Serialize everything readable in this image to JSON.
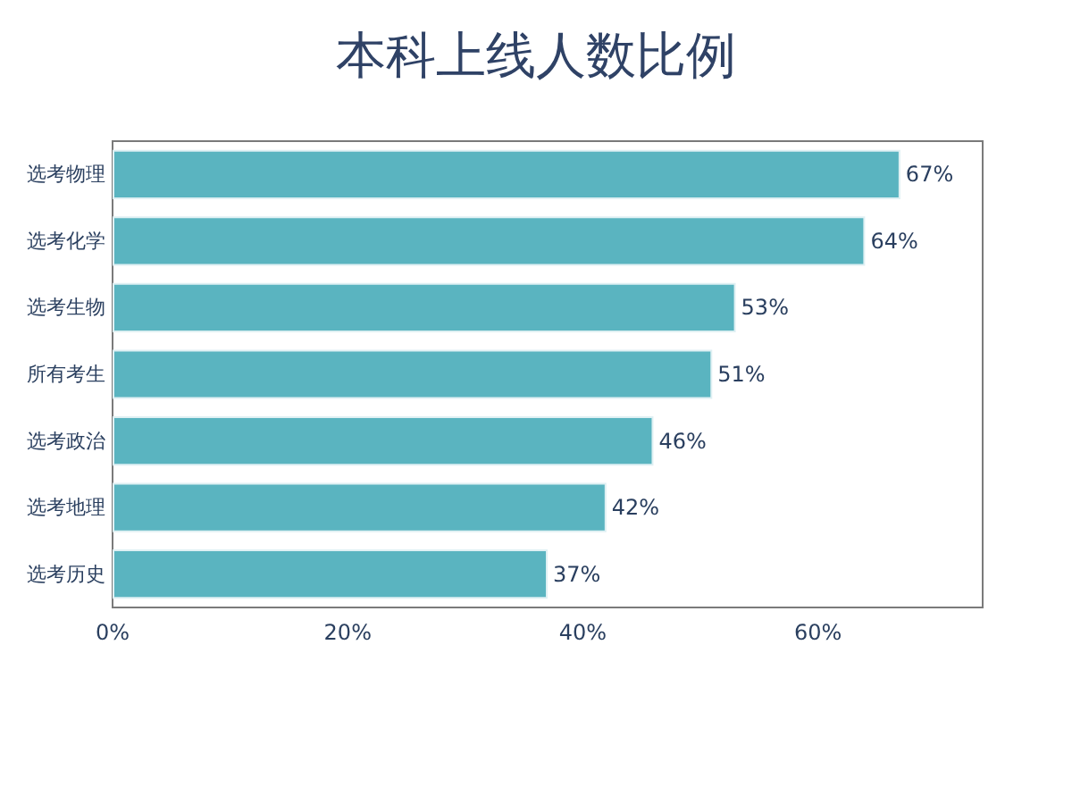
{
  "chart_data": {
    "type": "bar",
    "orientation": "horizontal",
    "title": "本科上线人数比例",
    "categories": [
      "选考物理",
      "选考化学",
      "选考生物",
      "所有考生",
      "选考政治",
      "选考地理",
      "选考历史"
    ],
    "values": [
      67,
      64,
      53,
      51,
      46,
      42,
      37
    ],
    "color": "#5ab4c0",
    "value_labels": [
      "67%",
      "64%",
      "53%",
      "51%",
      "46%",
      "42%",
      "37%"
    ],
    "xlim": [
      0,
      74
    ],
    "xticks": [
      {
        "value": 0,
        "label": "0%"
      },
      {
        "value": 20,
        "label": "20%"
      },
      {
        "value": 40,
        "label": "40%"
      },
      {
        "value": 60,
        "label": "60%"
      }
    ]
  }
}
